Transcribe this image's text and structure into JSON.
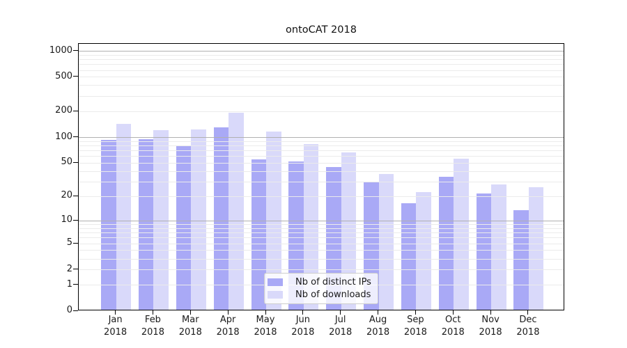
{
  "title": "ontoCAT 2018",
  "legend": {
    "items": [
      {
        "label": "Nb of distinct IPs",
        "color": "#a9a9f6"
      },
      {
        "label": "Nb of downloads",
        "color": "#d9d9fa"
      }
    ]
  },
  "chart_data": {
    "type": "bar",
    "title": "ontoCAT 2018",
    "categories": [
      "Jan 2018",
      "Feb 2018",
      "Mar 2018",
      "Apr 2018",
      "May 2018",
      "Jun 2018",
      "Jul 2018",
      "Aug 2018",
      "Sep 2018",
      "Oct 2018",
      "Nov 2018",
      "Dec 2018"
    ],
    "series": [
      {
        "name": "Nb of distinct IPs",
        "color": "#a9a9f6",
        "values": [
          90,
          92,
          77,
          127,
          53,
          50,
          43,
          29,
          16,
          33,
          21,
          13
        ]
      },
      {
        "name": "Nb of downloads",
        "color": "#d9d9fa",
        "values": [
          139,
          118,
          120,
          186,
          112,
          80,
          65,
          36,
          22,
          54,
          27,
          25
        ]
      }
    ],
    "xlabel": "",
    "ylabel": "",
    "y_scale": "log1p",
    "y_ticks": [
      0,
      1,
      2,
      5,
      10,
      20,
      50,
      100,
      200,
      500,
      1000
    ],
    "ylim": [
      0,
      1215
    ],
    "grid": true,
    "gridlines": {
      "major": [
        10,
        100,
        1000
      ],
      "minor": [
        1,
        2,
        3,
        4,
        5,
        6,
        7,
        8,
        9,
        20,
        30,
        40,
        50,
        60,
        70,
        80,
        90,
        200,
        300,
        400,
        500,
        600,
        700,
        800,
        900
      ]
    },
    "legend_position": "lower center",
    "colors": {
      "major_grid": "#b0b0b0",
      "minor_grid": "#ebebeb",
      "spine": "#000000",
      "text": "#1a1a1a",
      "background": "#ffffff"
    }
  }
}
